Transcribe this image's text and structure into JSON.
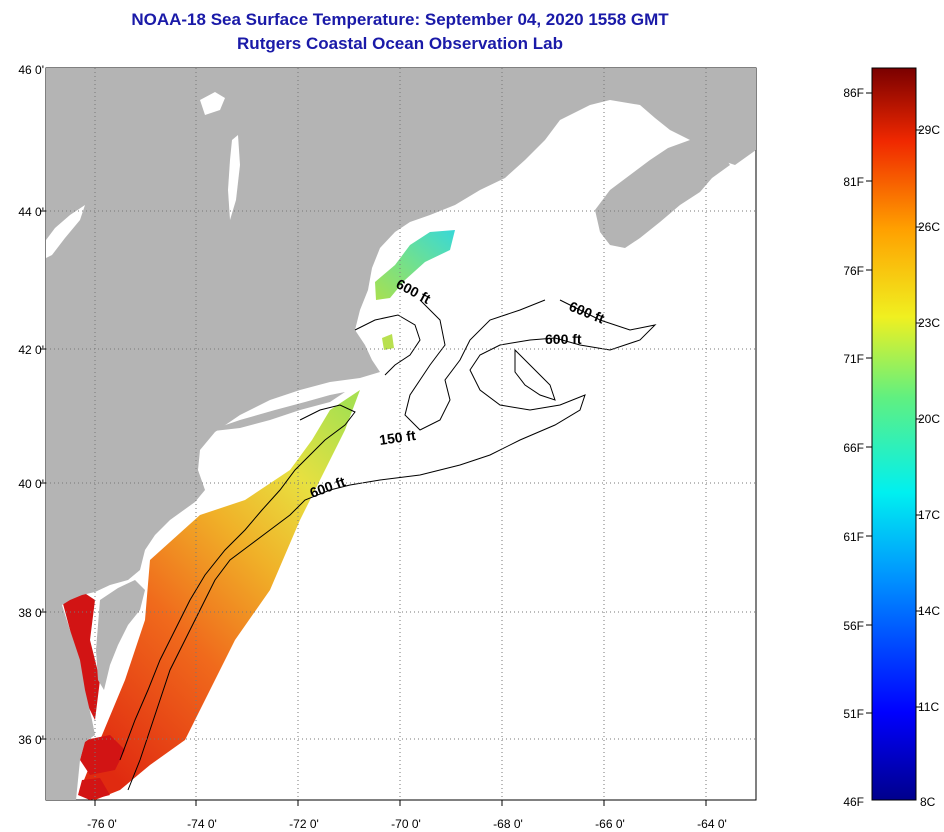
{
  "title": "NOAA-18 Sea Surface Temperature:  September 04, 2020 1558 GMT",
  "subtitle": "Rutgers Coastal Ocean Observation Lab",
  "map": {
    "lon_labels": [
      "-76 0'",
      "-74 0'",
      "-72 0'",
      "-70 0'",
      "-68 0'",
      "-66 0'",
      "-64 0'"
    ],
    "lat_labels": [
      "46 0'",
      "44 0'",
      "42 0'",
      "40 0'",
      "38 0'",
      "36 0'"
    ],
    "depth_labels": [
      "600 ft",
      "600 ft",
      "600 ft",
      "150 ft",
      "600 ft"
    ]
  },
  "colorbar": {
    "fahrenheit_labels": [
      "86F",
      "81F",
      "76F",
      "71F",
      "66F",
      "61F",
      "56F",
      "51F",
      "46F"
    ],
    "celsius_labels": [
      "29C",
      "26C",
      "23C",
      "20C",
      "17C",
      "14C",
      "11C",
      "8C"
    ]
  },
  "colors": {
    "land": "#b4b4b4",
    "ocean": "#ffffff",
    "title": "#1a1aa8",
    "warm": "#f05a1e",
    "hot": "#d21414",
    "mild": "#f0b428",
    "cool": "#a8e050",
    "cold": "#38e0d0"
  }
}
